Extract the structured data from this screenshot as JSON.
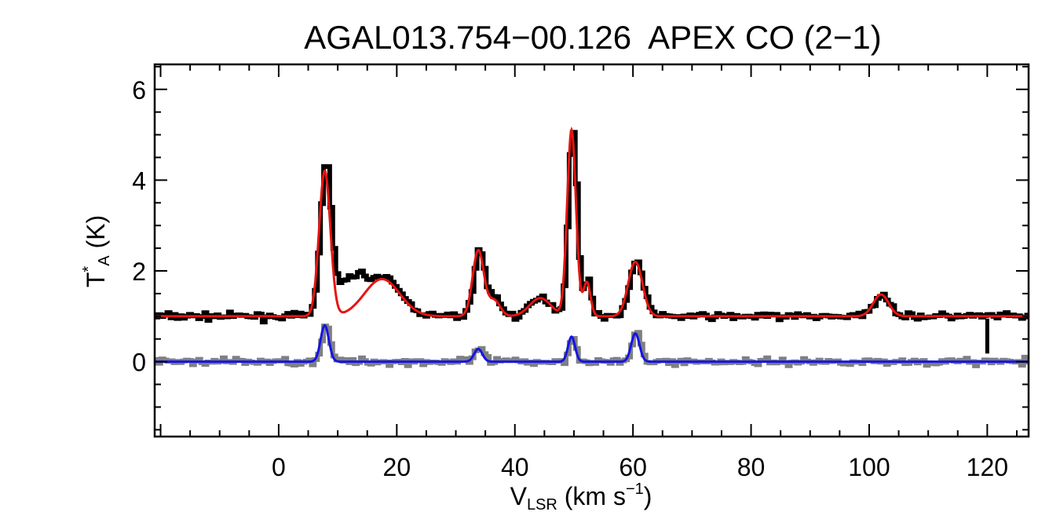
{
  "chart_data": {
    "type": "line",
    "title": "AGAL013.754−00.126  APEX CO (2−1)",
    "xlabel": {
      "main": "V",
      "sub": "LSR",
      "rest": " (km s",
      "sup": "−1",
      "end": ")"
    },
    "ylabel": {
      "main": "T",
      "sup": "*",
      "sub": "A",
      "rest": " (K)"
    },
    "xlim": [
      -21,
      127
    ],
    "ylim": [
      -1.65,
      6.55
    ],
    "xticks": [
      0,
      20,
      40,
      60,
      80,
      100,
      120
    ],
    "yticks": [
      0,
      2,
      4,
      6
    ],
    "xtick_labels": [
      "0",
      "20",
      "40",
      "60",
      "80",
      "100",
      "120"
    ],
    "ytick_labels": [
      "0",
      "2",
      "4",
      "6"
    ],
    "grid": false,
    "legend": "none",
    "series": [
      {
        "style": "histogram",
        "color": "#000000",
        "baseline": 1.0,
        "noise": 0.07,
        "components": [
          {
            "center": 7.8,
            "amp": 3.25,
            "sigma": 0.95
          },
          {
            "center": 12.0,
            "amp": 0.75,
            "sigma": 2.2
          },
          {
            "center": 17.5,
            "amp": 0.82,
            "sigma": 3.0
          },
          {
            "center": 33.8,
            "amp": 1.45,
            "sigma": 0.95
          },
          {
            "center": 36.5,
            "amp": 0.4,
            "sigma": 1.0
          },
          {
            "center": 44.3,
            "amp": 0.4,
            "sigma": 1.8
          },
          {
            "center": 49.6,
            "amp": 4.15,
            "sigma": 0.75
          },
          {
            "center": 52.2,
            "amp": 0.8,
            "sigma": 0.6
          },
          {
            "center": 60.4,
            "amp": 1.2,
            "sigma": 1.2
          },
          {
            "center": 102.0,
            "amp": 0.5,
            "sigma": 1.3
          }
        ],
        "spike": {
          "x": 120,
          "y_min": 0.18,
          "y_max": 0.95
        }
      },
      {
        "style": "line",
        "color": "#e8140f",
        "baseline": 1.0,
        "components": [
          {
            "center": 7.8,
            "amp": 3.2,
            "sigma": 0.95
          },
          {
            "center": 17.5,
            "amp": 0.82,
            "sigma": 3.0
          },
          {
            "center": 33.8,
            "amp": 1.45,
            "sigma": 0.95
          },
          {
            "center": 36.5,
            "amp": 0.35,
            "sigma": 1.0
          },
          {
            "center": 44.3,
            "amp": 0.4,
            "sigma": 1.8
          },
          {
            "center": 49.6,
            "amp": 4.1,
            "sigma": 0.75
          },
          {
            "center": 52.2,
            "amp": 0.75,
            "sigma": 0.6
          },
          {
            "center": 60.4,
            "amp": 1.2,
            "sigma": 1.2
          },
          {
            "center": 102.0,
            "amp": 0.48,
            "sigma": 1.3
          }
        ]
      },
      {
        "style": "histogram",
        "color": "#808080",
        "baseline": 0.0,
        "noise": 0.07,
        "components": [
          {
            "center": 7.8,
            "amp": 0.85,
            "sigma": 0.7
          },
          {
            "center": 33.8,
            "amp": 0.3,
            "sigma": 0.7
          },
          {
            "center": 49.6,
            "amp": 0.55,
            "sigma": 0.6
          },
          {
            "center": 60.4,
            "amp": 0.65,
            "sigma": 0.7
          }
        ]
      },
      {
        "style": "line",
        "color": "#1414e6",
        "baseline": 0.0,
        "components": [
          {
            "center": 7.8,
            "amp": 0.8,
            "sigma": 0.7
          },
          {
            "center": 33.8,
            "amp": 0.28,
            "sigma": 0.7
          },
          {
            "center": 49.6,
            "amp": 0.55,
            "sigma": 0.6
          },
          {
            "center": 60.4,
            "amp": 0.62,
            "sigma": 0.7
          }
        ]
      }
    ]
  }
}
